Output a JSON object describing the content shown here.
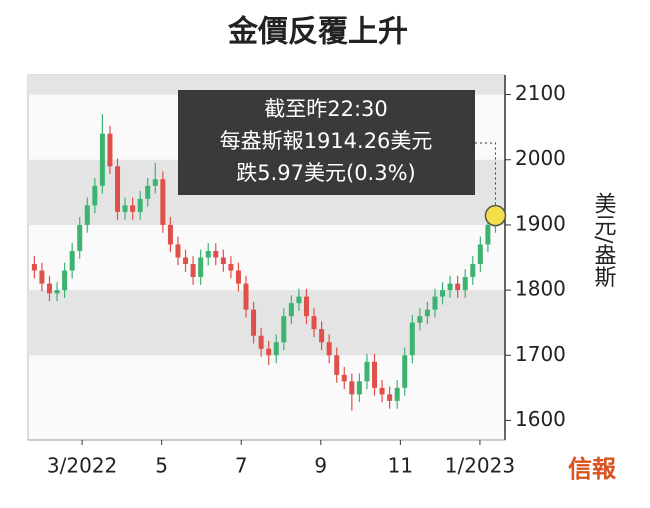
{
  "chart_data": {
    "type": "candlestick",
    "title": "金價反覆上升",
    "y_label": "美元/盎斯",
    "source": "信報",
    "annotation": [
      "截至昨22:30",
      "每盎斯報1914.26美元",
      "跌5.97美元(0.3%)"
    ],
    "x": [
      1.8,
      1.99,
      2.18,
      2.37,
      2.56,
      2.75,
      2.94,
      3.13,
      3.32,
      3.51,
      3.7,
      3.89,
      4.08,
      4.27,
      4.46,
      4.65,
      4.84,
      5.03,
      5.22,
      5.41,
      5.6,
      5.79,
      5.98,
      6.17,
      6.36,
      6.55,
      6.74,
      6.93,
      7.12,
      7.31,
      7.5,
      7.69,
      7.88,
      8.07,
      8.26,
      8.45,
      8.64,
      8.83,
      9.02,
      9.21,
      9.4,
      9.59,
      9.78,
      9.97,
      10.16,
      10.35,
      10.54,
      10.73,
      10.92,
      11.11,
      11.3,
      11.49,
      11.68,
      11.87,
      12.06,
      12.25,
      12.44,
      12.63,
      12.82,
      13.01,
      13.2,
      13.39
    ],
    "open": [
      1840,
      1830,
      1810,
      1795,
      1800,
      1830,
      1860,
      1900,
      1930,
      1960,
      2040,
      1990,
      1920,
      1930,
      1920,
      1940,
      1960,
      1970,
      1900,
      1870,
      1850,
      1840,
      1820,
      1850,
      1860,
      1850,
      1840,
      1830,
      1810,
      1770,
      1730,
      1710,
      1700,
      1720,
      1760,
      1780,
      1790,
      1760,
      1740,
      1720,
      1700,
      1670,
      1660,
      1640,
      1660,
      1690,
      1650,
      1640,
      1630,
      1650,
      1700,
      1750,
      1760,
      1770,
      1790,
      1800,
      1810,
      1800,
      1820,
      1840,
      1870,
      1900
    ],
    "high": [
      1852,
      1842,
      1822,
      1812,
      1842,
      1872,
      1912,
      1942,
      1972,
      2070,
      2052,
      2002,
      1942,
      1942,
      1952,
      1972,
      1995,
      1982,
      1912,
      1882,
      1862,
      1852,
      1862,
      1872,
      1872,
      1862,
      1852,
      1842,
      1822,
      1782,
      1742,
      1722,
      1732,
      1772,
      1792,
      1802,
      1802,
      1772,
      1752,
      1732,
      1712,
      1682,
      1672,
      1672,
      1702,
      1702,
      1662,
      1652,
      1662,
      1712,
      1762,
      1772,
      1782,
      1802,
      1812,
      1822,
      1822,
      1832,
      1852,
      1882,
      1912,
      1926
    ],
    "low": [
      1818,
      1798,
      1783,
      1783,
      1788,
      1818,
      1848,
      1888,
      1918,
      1948,
      1978,
      1908,
      1908,
      1908,
      1908,
      1928,
      1948,
      1888,
      1858,
      1838,
      1828,
      1808,
      1808,
      1838,
      1838,
      1828,
      1818,
      1798,
      1758,
      1718,
      1698,
      1685,
      1688,
      1708,
      1748,
      1768,
      1748,
      1728,
      1708,
      1688,
      1658,
      1648,
      1615,
      1628,
      1648,
      1638,
      1628,
      1618,
      1618,
      1638,
      1688,
      1738,
      1748,
      1758,
      1778,
      1788,
      1788,
      1788,
      1808,
      1828,
      1858,
      1888
    ],
    "close": [
      1830,
      1810,
      1795,
      1800,
      1830,
      1860,
      1900,
      1930,
      1960,
      2040,
      1990,
      1920,
      1930,
      1920,
      1940,
      1960,
      1970,
      1900,
      1870,
      1850,
      1840,
      1820,
      1850,
      1860,
      1850,
      1840,
      1830,
      1810,
      1770,
      1730,
      1710,
      1700,
      1720,
      1760,
      1780,
      1790,
      1760,
      1740,
      1720,
      1700,
      1670,
      1660,
      1640,
      1660,
      1690,
      1650,
      1640,
      1630,
      1650,
      1700,
      1750,
      1760,
      1770,
      1790,
      1800,
      1810,
      1800,
      1820,
      1840,
      1870,
      1900,
      1914.26
    ],
    "up_color": "#3cb371",
    "down_color": "#e0504a",
    "band_color": "#e4e4e4",
    "highlight_color": "#f2e04a",
    "xlim": [
      1.64,
      13.63
    ],
    "xticks": [
      {
        "value": 3,
        "label": "3/2022"
      },
      5,
      7,
      9,
      11,
      {
        "value": 13,
        "label": "1/2023"
      }
    ],
    "ylim": [
      1570,
      2130
    ],
    "yticks": [
      1600,
      1700,
      1800,
      1900,
      2000,
      2100
    ]
  }
}
